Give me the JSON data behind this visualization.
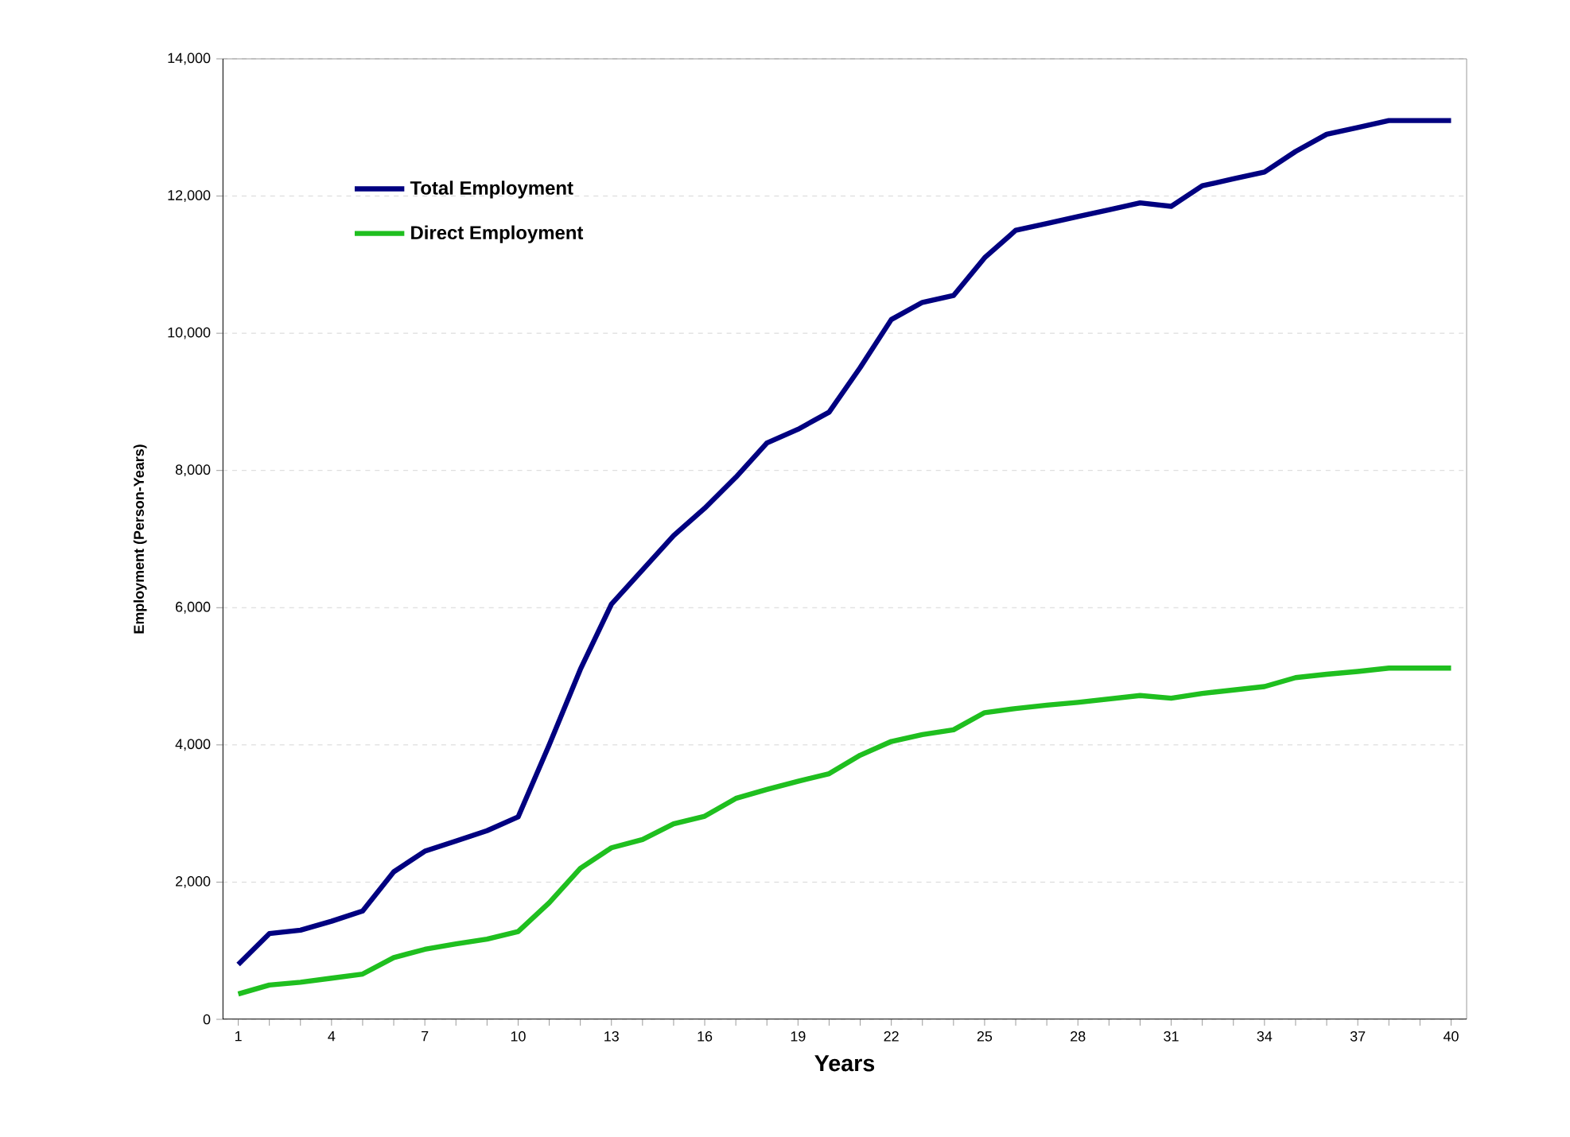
{
  "chart_data": {
    "type": "line",
    "xlabel": "Years",
    "ylabel": "Employment (Person-Years)",
    "categories": [
      "1",
      null,
      null,
      "4",
      null,
      null,
      "7",
      null,
      null,
      "10",
      null,
      null,
      "13",
      null,
      null,
      "16",
      null,
      null,
      "19",
      null,
      null,
      "22",
      null,
      null,
      "25",
      null,
      null,
      "28",
      null,
      null,
      "31",
      null,
      null,
      "34",
      null,
      null,
      "37",
      null,
      null,
      "40"
    ],
    "series": [
      {
        "name": "Total Employment",
        "color": "#000080",
        "values": [
          800,
          1250,
          1300,
          1430,
          1580,
          2150,
          2450,
          2600,
          2750,
          2950,
          4000,
          5100,
          6050,
          6550,
          7050,
          7450,
          7900,
          8400,
          8600,
          8850,
          9500,
          10200,
          10450,
          10550,
          11100,
          11500,
          11600,
          11700,
          11800,
          11900,
          11850,
          12150,
          12250,
          12350,
          12650,
          12900,
          13000,
          13100,
          13100,
          13100
        ]
      },
      {
        "name": "Direct Employment",
        "color": "#1fbf1f",
        "values": [
          370,
          500,
          540,
          600,
          660,
          900,
          1020,
          1100,
          1170,
          1280,
          1700,
          2200,
          2500,
          2620,
          2850,
          2960,
          3220,
          3350,
          3470,
          3580,
          3850,
          4050,
          4150,
          4220,
          4470,
          4530,
          4580,
          4620,
          4670,
          4720,
          4680,
          4750,
          4800,
          4850,
          4980,
          5030,
          5070,
          5120,
          5120,
          5120
        ]
      }
    ],
    "ylim": [
      0,
      14000
    ],
    "yticks": [
      {
        "value": 0,
        "label": "0"
      },
      {
        "value": 2000,
        "label": "2,000"
      },
      {
        "value": 4000,
        "label": "4,000"
      },
      {
        "value": 6000,
        "label": "6,000"
      },
      {
        "value": 8000,
        "label": "8,000"
      },
      {
        "value": 10000,
        "label": "10,000"
      },
      {
        "value": 12000,
        "label": "12,000"
      },
      {
        "value": 14000,
        "label": "14,000"
      }
    ],
    "grid": "y",
    "legend": "top left",
    "marker": "none",
    "line_style": "solid"
  }
}
